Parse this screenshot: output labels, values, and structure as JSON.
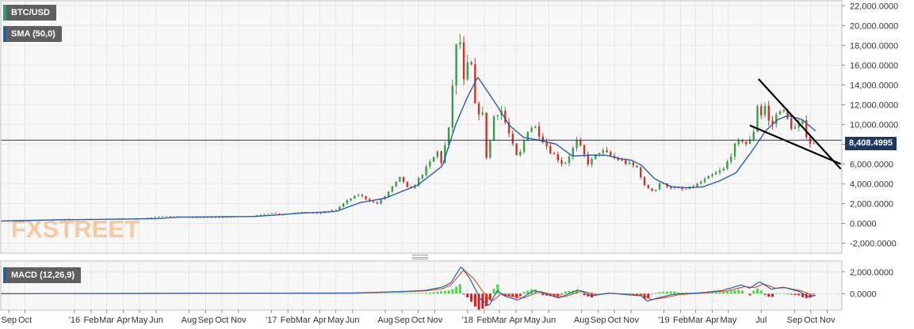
{
  "labels": {
    "symbol": "BTC/USD",
    "sma": "SMA (50,0)",
    "macd": "MACD (12,26,9)",
    "last_price": "8,408.4995",
    "watermark": "FXSTREET"
  },
  "colors": {
    "background": "#ffffff",
    "plot_background": "#f7f7f7",
    "grid": "#e6e6e6",
    "bull_candle": "#3f9a4a",
    "bear_candle": "#c0392b",
    "sma_line": "#2a5fa8",
    "price_line": "#1f3a5f",
    "trendline": "#000000",
    "macd_line": "#2a5fa8",
    "signal_line": "#e0552a",
    "hist_pos": "#4cd84c",
    "hist_neg": "#e01a1a",
    "watermark": "#f3b77f"
  },
  "chart_data": [
    {
      "type": "candlestick",
      "title": "",
      "series": [
        {
          "name": "BTC/USD",
          "kind": "price"
        },
        {
          "name": "SMA (50,0)",
          "kind": "moving-average"
        }
      ],
      "ylim": [
        -3000,
        22500
      ],
      "y_ticks": [
        22000,
        20000,
        18000,
        16000,
        14000,
        12000,
        10000,
        8000,
        6000,
        4000,
        2000,
        0,
        -2000
      ],
      "y_tick_labels": [
        "22,000.0000",
        "20,000.0000",
        "18,000.0000",
        "16,000.0000",
        "14,000.0000",
        "12,000.0000",
        "10,000.0000",
        "8,000.0000",
        "6,000.0000",
        "4,000.0000",
        "2,000.0000",
        "0.0000",
        "-2,000.0000"
      ],
      "last_price": 8408.4995,
      "x_range": [
        "2015-08-17",
        "2019-11-28"
      ],
      "x_tick_labels": [
        {
          "date": "2015-09-01",
          "label": "Sep"
        },
        {
          "date": "2015-10-01",
          "label": "Oct"
        },
        {
          "date": "2016-01-01",
          "label": "'16"
        },
        {
          "date": "2016-02-01",
          "label": "Feb"
        },
        {
          "date": "2016-03-01",
          "label": "Mar"
        },
        {
          "date": "2016-04-01",
          "label": "Apr"
        },
        {
          "date": "2016-05-01",
          "label": "May"
        },
        {
          "date": "2016-06-01",
          "label": "Jun"
        },
        {
          "date": "2016-08-01",
          "label": "Aug"
        },
        {
          "date": "2016-09-01",
          "label": "Sep"
        },
        {
          "date": "2016-10-01",
          "label": "Oct"
        },
        {
          "date": "2016-11-01",
          "label": "Nov"
        },
        {
          "date": "2017-01-01",
          "label": "'17"
        },
        {
          "date": "2017-02-01",
          "label": "Feb"
        },
        {
          "date": "2017-03-01",
          "label": "Mar"
        },
        {
          "date": "2017-04-01",
          "label": "Apr"
        },
        {
          "date": "2017-05-01",
          "label": "May"
        },
        {
          "date": "2017-06-01",
          "label": "Jun"
        },
        {
          "date": "2017-08-01",
          "label": "Aug"
        },
        {
          "date": "2017-09-01",
          "label": "Sep"
        },
        {
          "date": "2017-10-01",
          "label": "Oct"
        },
        {
          "date": "2017-11-01",
          "label": "Nov"
        },
        {
          "date": "2018-01-01",
          "label": "'18"
        },
        {
          "date": "2018-02-01",
          "label": "Feb"
        },
        {
          "date": "2018-03-01",
          "label": "Mar"
        },
        {
          "date": "2018-04-01",
          "label": "Apr"
        },
        {
          "date": "2018-05-01",
          "label": "May"
        },
        {
          "date": "2018-06-01",
          "label": "Jun"
        },
        {
          "date": "2018-08-01",
          "label": "Aug"
        },
        {
          "date": "2018-09-01",
          "label": "Sep"
        },
        {
          "date": "2018-10-01",
          "label": "Oct"
        },
        {
          "date": "2018-11-01",
          "label": "Nov"
        },
        {
          "date": "2019-01-01",
          "label": "'19"
        },
        {
          "date": "2019-02-01",
          "label": "Feb"
        },
        {
          "date": "2019-03-01",
          "label": "Mar"
        },
        {
          "date": "2019-04-01",
          "label": "Apr"
        },
        {
          "date": "2019-05-01",
          "label": "May"
        },
        {
          "date": "2019-07-01",
          "label": "Jul"
        },
        {
          "date": "2019-09-01",
          "label": "Sep"
        },
        {
          "date": "2019-10-01",
          "label": "Oct"
        },
        {
          "date": "2019-11-01",
          "label": "Nov"
        }
      ],
      "price_anchors": [
        [
          "2015-08-17",
          240
        ],
        [
          "2015-10-01",
          245
        ],
        [
          "2015-11-05",
          380
        ],
        [
          "2015-12-15",
          440
        ],
        [
          "2016-01-15",
          400
        ],
        [
          "2016-03-01",
          430
        ],
        [
          "2016-05-01",
          450
        ],
        [
          "2016-06-17",
          750
        ],
        [
          "2016-08-01",
          600
        ],
        [
          "2016-10-01",
          610
        ],
        [
          "2016-12-01",
          750
        ],
        [
          "2017-01-04",
          1100
        ],
        [
          "2017-01-15",
          850
        ],
        [
          "2017-03-01",
          1200
        ],
        [
          "2017-03-25",
          950
        ],
        [
          "2017-05-01",
          1400
        ],
        [
          "2017-05-25",
          2400
        ],
        [
          "2017-06-12",
          2900
        ],
        [
          "2017-07-16",
          1950
        ],
        [
          "2017-08-01",
          2800
        ],
        [
          "2017-08-30",
          4700
        ],
        [
          "2017-09-15",
          3200
        ],
        [
          "2017-10-01",
          4400
        ],
        [
          "2017-11-07",
          7300
        ],
        [
          "2017-11-12",
          6000
        ],
        [
          "2017-11-29",
          9900
        ],
        [
          "2017-12-07",
          16500
        ],
        [
          "2017-12-17",
          19500
        ],
        [
          "2017-12-22",
          13500
        ],
        [
          "2018-01-06",
          17000
        ],
        [
          "2018-01-16",
          11200
        ],
        [
          "2018-01-28",
          11500
        ],
        [
          "2018-02-06",
          6200
        ],
        [
          "2018-02-20",
          11200
        ],
        [
          "2018-03-05",
          11400
        ],
        [
          "2018-04-01",
          6800
        ],
        [
          "2018-04-06",
          6600
        ],
        [
          "2018-04-24",
          9700
        ],
        [
          "2018-05-06",
          9800
        ],
        [
          "2018-06-01",
          7500
        ],
        [
          "2018-06-29",
          5900
        ],
        [
          "2018-07-24",
          8300
        ],
        [
          "2018-08-14",
          6000
        ],
        [
          "2018-09-05",
          7400
        ],
        [
          "2018-10-01",
          6600
        ],
        [
          "2018-11-14",
          5600
        ],
        [
          "2018-11-25",
          3800
        ],
        [
          "2018-12-15",
          3250
        ],
        [
          "2018-12-24",
          4100
        ],
        [
          "2019-01-15",
          3600
        ],
        [
          "2019-02-08",
          3400
        ],
        [
          "2019-03-01",
          3850
        ],
        [
          "2019-04-02",
          4900
        ],
        [
          "2019-04-23",
          5500
        ],
        [
          "2019-05-14",
          7900
        ],
        [
          "2019-05-30",
          8600
        ],
        [
          "2019-06-06",
          7700
        ],
        [
          "2019-06-21",
          10000
        ],
        [
          "2019-06-26",
          13300
        ],
        [
          "2019-07-02",
          10600
        ],
        [
          "2019-07-10",
          12300
        ],
        [
          "2019-07-17",
          9500
        ],
        [
          "2019-08-06",
          11800
        ],
        [
          "2019-08-29",
          9500
        ],
        [
          "2019-09-19",
          10200
        ],
        [
          "2019-09-25",
          8400
        ],
        [
          "2019-10-06",
          7900
        ],
        [
          "2019-10-11",
          8408
        ]
      ],
      "sma_anchors": [
        [
          "2015-08-17",
          245
        ],
        [
          "2015-12-01",
          360
        ],
        [
          "2016-06-01",
          480
        ],
        [
          "2016-07-15",
          640
        ],
        [
          "2016-12-01",
          700
        ],
        [
          "2017-03-01",
          1050
        ],
        [
          "2017-05-01",
          1200
        ],
        [
          "2017-06-15",
          2100
        ],
        [
          "2017-08-01",
          2550
        ],
        [
          "2017-10-01",
          3900
        ],
        [
          "2017-11-15",
          5800
        ],
        [
          "2017-12-10",
          10000
        ],
        [
          "2018-01-01",
          12800
        ],
        [
          "2018-01-20",
          14800
        ],
        [
          "2018-02-20",
          12300
        ],
        [
          "2018-03-20",
          9900
        ],
        [
          "2018-04-15",
          8700
        ],
        [
          "2018-05-15",
          8400
        ],
        [
          "2018-06-15",
          8000
        ],
        [
          "2018-07-15",
          6800
        ],
        [
          "2018-08-15",
          6900
        ],
        [
          "2018-09-15",
          6900
        ],
        [
          "2018-10-15",
          6500
        ],
        [
          "2018-11-01",
          6400
        ],
        [
          "2018-11-20",
          5900
        ],
        [
          "2018-12-15",
          4500
        ],
        [
          "2019-01-15",
          3700
        ],
        [
          "2019-02-15",
          3600
        ],
        [
          "2019-03-15",
          3700
        ],
        [
          "2019-04-15",
          4300
        ],
        [
          "2019-05-15",
          5100
        ],
        [
          "2019-06-15",
          7400
        ],
        [
          "2019-07-10",
          9400
        ],
        [
          "2019-08-01",
          10500
        ],
        [
          "2019-08-20",
          10900
        ],
        [
          "2019-09-15",
          10500
        ],
        [
          "2019-10-11",
          9300
        ]
      ],
      "trendlines": [
        {
          "name": "upper",
          "from": [
            "2019-06-26",
            14600
          ],
          "to": [
            "2019-11-26",
            5500
          ]
        },
        {
          "name": "lower",
          "from": [
            "2019-06-10",
            9900
          ],
          "to": [
            "2019-11-26",
            6000
          ]
        }
      ]
    },
    {
      "type": "macd",
      "title": "MACD (12,26,9)",
      "ylim": [
        -1500,
        3000
      ],
      "y_ticks": [
        2000,
        0
      ],
      "y_tick_labels": [
        "2,000.0000",
        "0.0000"
      ],
      "macd_anchors": [
        [
          "2015-08-17",
          0
        ],
        [
          "2017-06-01",
          60
        ],
        [
          "2017-09-01",
          200
        ],
        [
          "2017-10-15",
          300
        ],
        [
          "2017-11-15",
          600
        ],
        [
          "2017-12-01",
          1000
        ],
        [
          "2017-12-20",
          2500
        ],
        [
          "2018-01-05",
          1400
        ],
        [
          "2018-01-25",
          -500
        ],
        [
          "2018-02-10",
          -1100
        ],
        [
          "2018-02-25",
          300
        ],
        [
          "2018-03-10",
          -200
        ],
        [
          "2018-04-05",
          -600
        ],
        [
          "2018-05-05",
          300
        ],
        [
          "2018-06-20",
          -400
        ],
        [
          "2018-07-25",
          350
        ],
        [
          "2018-08-20",
          -200
        ],
        [
          "2018-09-20",
          50
        ],
        [
          "2018-11-20",
          -200
        ],
        [
          "2018-12-01",
          -700
        ],
        [
          "2018-12-20",
          -400
        ],
        [
          "2019-01-20",
          -50
        ],
        [
          "2019-03-15",
          100
        ],
        [
          "2019-04-20",
          300
        ],
        [
          "2019-05-25",
          800
        ],
        [
          "2019-06-10",
          500
        ],
        [
          "2019-06-28",
          1100
        ],
        [
          "2019-07-20",
          400
        ],
        [
          "2019-08-10",
          600
        ],
        [
          "2019-09-10",
          200
        ],
        [
          "2019-09-28",
          -300
        ],
        [
          "2019-10-11",
          -150
        ]
      ],
      "signal_anchors": [
        [
          "2015-08-17",
          0
        ],
        [
          "2017-06-01",
          50
        ],
        [
          "2017-09-01",
          170
        ],
        [
          "2017-10-15",
          260
        ],
        [
          "2017-11-15",
          450
        ],
        [
          "2017-12-01",
          800
        ],
        [
          "2017-12-25",
          2200
        ],
        [
          "2018-01-12",
          1400
        ],
        [
          "2018-02-01",
          0
        ],
        [
          "2018-02-15",
          -700
        ],
        [
          "2018-03-05",
          0
        ],
        [
          "2018-03-20",
          -200
        ],
        [
          "2018-04-15",
          -400
        ],
        [
          "2018-05-15",
          200
        ],
        [
          "2018-06-30",
          -300
        ],
        [
          "2018-08-01",
          250
        ],
        [
          "2018-08-30",
          -100
        ],
        [
          "2018-09-25",
          40
        ],
        [
          "2018-11-25",
          -150
        ],
        [
          "2018-12-08",
          -550
        ],
        [
          "2018-12-30",
          -400
        ],
        [
          "2019-01-30",
          -80
        ],
        [
          "2019-03-20",
          80
        ],
        [
          "2019-04-28",
          250
        ],
        [
          "2019-06-01",
          650
        ],
        [
          "2019-06-18",
          550
        ],
        [
          "2019-07-05",
          900
        ],
        [
          "2019-07-28",
          500
        ],
        [
          "2019-08-15",
          550
        ],
        [
          "2019-09-15",
          250
        ],
        [
          "2019-10-05",
          -150
        ],
        [
          "2019-10-11",
          -180
        ]
      ]
    }
  ]
}
